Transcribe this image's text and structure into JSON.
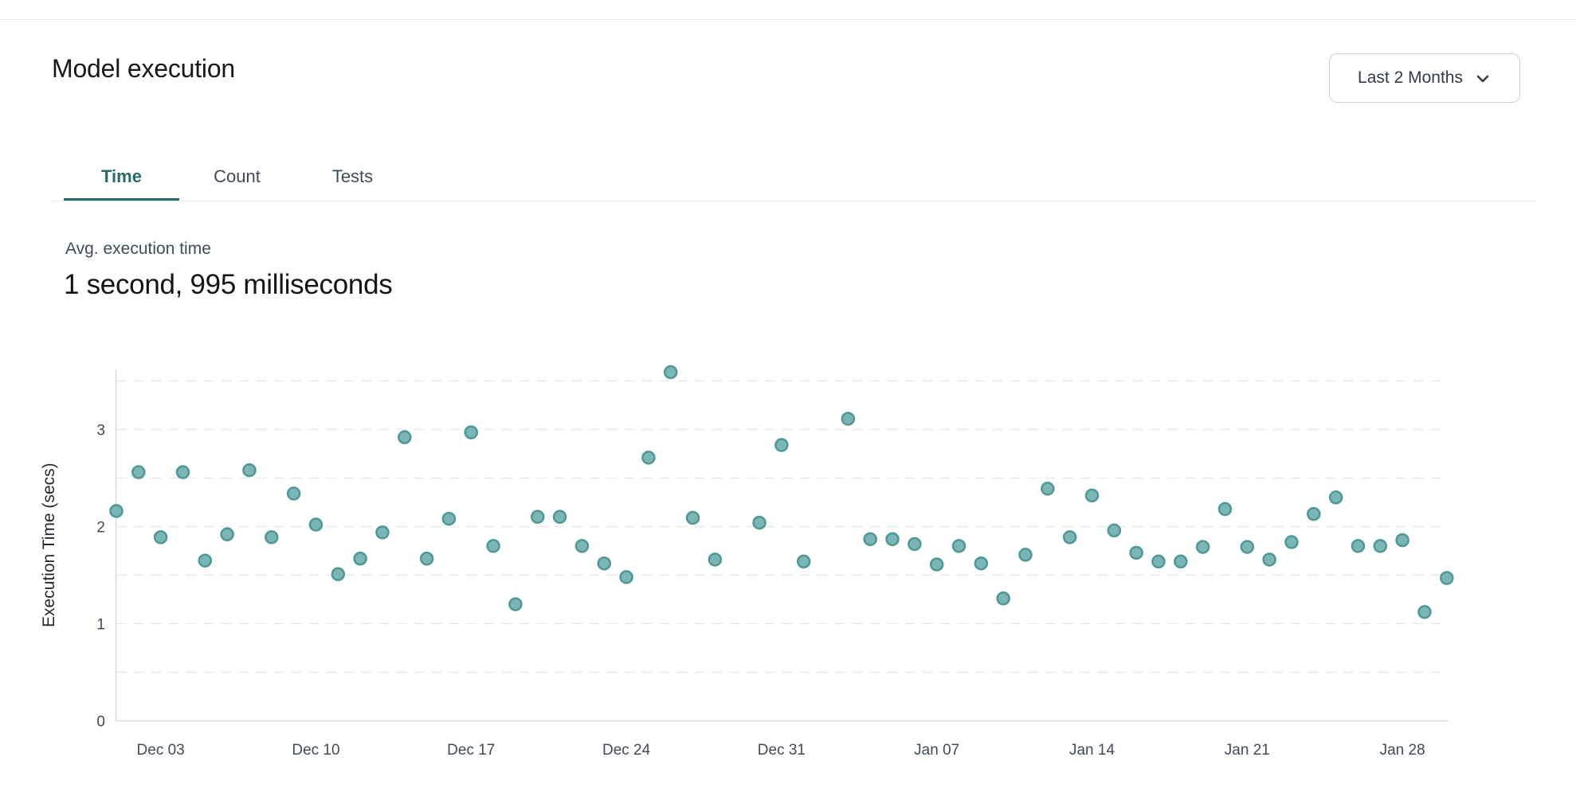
{
  "header": {
    "title": "Model execution",
    "range_label": "Last 2 Months"
  },
  "tabs": [
    {
      "label": "Time",
      "active": true
    },
    {
      "label": "Count",
      "active": false
    },
    {
      "label": "Tests",
      "active": false
    }
  ],
  "stat": {
    "label": "Avg. execution time",
    "value": "1 second, 995 milliseconds"
  },
  "colors": {
    "accent_teal": "#266b6b",
    "dot_fill": "#7ab6b6",
    "dot_stroke": "#4f9797",
    "grid": "#e6e9ed",
    "axis": "#d8dde2",
    "tick_text": "#3e4c59",
    "axis_title_text": "#1f2933"
  },
  "chart_data": {
    "type": "scatter",
    "title": "",
    "xlabel": "",
    "ylabel": "Execution Time (secs)",
    "ylim": [
      0,
      3.6
    ],
    "yticks": [
      0,
      1,
      2,
      3
    ],
    "gridlines": [
      0.5,
      1,
      1.5,
      2,
      2.5,
      3,
      3.5
    ],
    "grid_style": "dashed",
    "legend": "none",
    "x_unit": "day index from Dec 01",
    "xticks": [
      {
        "x": 2,
        "label": "Dec 03"
      },
      {
        "x": 9,
        "label": "Dec 10"
      },
      {
        "x": 16,
        "label": "Dec 17"
      },
      {
        "x": 23,
        "label": "Dec 24"
      },
      {
        "x": 30,
        "label": "Dec 31"
      },
      {
        "x": 37,
        "label": "Jan 07"
      },
      {
        "x": 44,
        "label": "Jan 14"
      },
      {
        "x": 51,
        "label": "Jan 21"
      },
      {
        "x": 58,
        "label": "Jan 28"
      }
    ],
    "points": [
      {
        "x": 0,
        "date": "Dec 01",
        "y": 2.16
      },
      {
        "x": 1,
        "date": "Dec 02",
        "y": 2.56
      },
      {
        "x": 2,
        "date": "Dec 03",
        "y": 1.89
      },
      {
        "x": 3,
        "date": "Dec 04",
        "y": 2.56
      },
      {
        "x": 4,
        "date": "Dec 05",
        "y": 1.65
      },
      {
        "x": 5,
        "date": "Dec 06",
        "y": 1.92
      },
      {
        "x": 6,
        "date": "Dec 07",
        "y": 2.58
      },
      {
        "x": 7,
        "date": "Dec 08",
        "y": 1.89
      },
      {
        "x": 8,
        "date": "Dec 09",
        "y": 2.34
      },
      {
        "x": 9,
        "date": "Dec 10",
        "y": 2.02
      },
      {
        "x": 10,
        "date": "Dec 11",
        "y": 1.51
      },
      {
        "x": 11,
        "date": "Dec 12",
        "y": 1.67
      },
      {
        "x": 12,
        "date": "Dec 13",
        "y": 1.94
      },
      {
        "x": 13,
        "date": "Dec 14",
        "y": 2.92
      },
      {
        "x": 14,
        "date": "Dec 15",
        "y": 1.67
      },
      {
        "x": 15,
        "date": "Dec 16",
        "y": 2.08
      },
      {
        "x": 16,
        "date": "Dec 17",
        "y": 2.97
      },
      {
        "x": 17,
        "date": "Dec 18",
        "y": 1.8
      },
      {
        "x": 18,
        "date": "Dec 19",
        "y": 1.2
      },
      {
        "x": 19,
        "date": "Dec 20",
        "y": 2.1
      },
      {
        "x": 20,
        "date": "Dec 21",
        "y": 2.1
      },
      {
        "x": 21,
        "date": "Dec 22",
        "y": 1.8
      },
      {
        "x": 22,
        "date": "Dec 23",
        "y": 1.62
      },
      {
        "x": 23,
        "date": "Dec 24",
        "y": 1.48
      },
      {
        "x": 24,
        "date": "Dec 25",
        "y": 2.71
      },
      {
        "x": 25,
        "date": "Dec 26",
        "y": 3.59
      },
      {
        "x": 26,
        "date": "Dec 27",
        "y": 2.09
      },
      {
        "x": 27,
        "date": "Dec 28",
        "y": 1.66
      },
      {
        "x": 29,
        "date": "Dec 30",
        "y": 2.04
      },
      {
        "x": 30,
        "date": "Dec 31",
        "y": 2.84
      },
      {
        "x": 31,
        "date": "Jan 01",
        "y": 1.64
      },
      {
        "x": 33,
        "date": "Jan 03",
        "y": 3.11
      },
      {
        "x": 34,
        "date": "Jan 04",
        "y": 1.87
      },
      {
        "x": 35,
        "date": "Jan 05",
        "y": 1.87
      },
      {
        "x": 36,
        "date": "Jan 06",
        "y": 1.82
      },
      {
        "x": 37,
        "date": "Jan 07",
        "y": 1.61
      },
      {
        "x": 38,
        "date": "Jan 08",
        "y": 1.8
      },
      {
        "x": 39,
        "date": "Jan 09",
        "y": 1.62
      },
      {
        "x": 40,
        "date": "Jan 10",
        "y": 1.26
      },
      {
        "x": 41,
        "date": "Jan 11",
        "y": 1.71
      },
      {
        "x": 42,
        "date": "Jan 12",
        "y": 2.39
      },
      {
        "x": 43,
        "date": "Jan 13",
        "y": 1.89
      },
      {
        "x": 44,
        "date": "Jan 14",
        "y": 2.32
      },
      {
        "x": 45,
        "date": "Jan 15",
        "y": 1.96
      },
      {
        "x": 46,
        "date": "Jan 16",
        "y": 1.73
      },
      {
        "x": 47,
        "date": "Jan 17",
        "y": 1.64
      },
      {
        "x": 48,
        "date": "Jan 18",
        "y": 1.64
      },
      {
        "x": 49,
        "date": "Jan 19",
        "y": 1.79
      },
      {
        "x": 50,
        "date": "Jan 20",
        "y": 2.18
      },
      {
        "x": 51,
        "date": "Jan 21",
        "y": 1.79
      },
      {
        "x": 52,
        "date": "Jan 22",
        "y": 1.66
      },
      {
        "x": 53,
        "date": "Jan 23",
        "y": 1.84
      },
      {
        "x": 54,
        "date": "Jan 24",
        "y": 2.13
      },
      {
        "x": 55,
        "date": "Jan 25",
        "y": 2.3
      },
      {
        "x": 56,
        "date": "Jan 26",
        "y": 1.8
      },
      {
        "x": 57,
        "date": "Jan 27",
        "y": 1.8
      },
      {
        "x": 58,
        "date": "Jan 28",
        "y": 1.86
      },
      {
        "x": 59,
        "date": "Jan 29",
        "y": 1.12
      },
      {
        "x": 60,
        "date": "Jan 30",
        "y": 1.47
      }
    ]
  }
}
